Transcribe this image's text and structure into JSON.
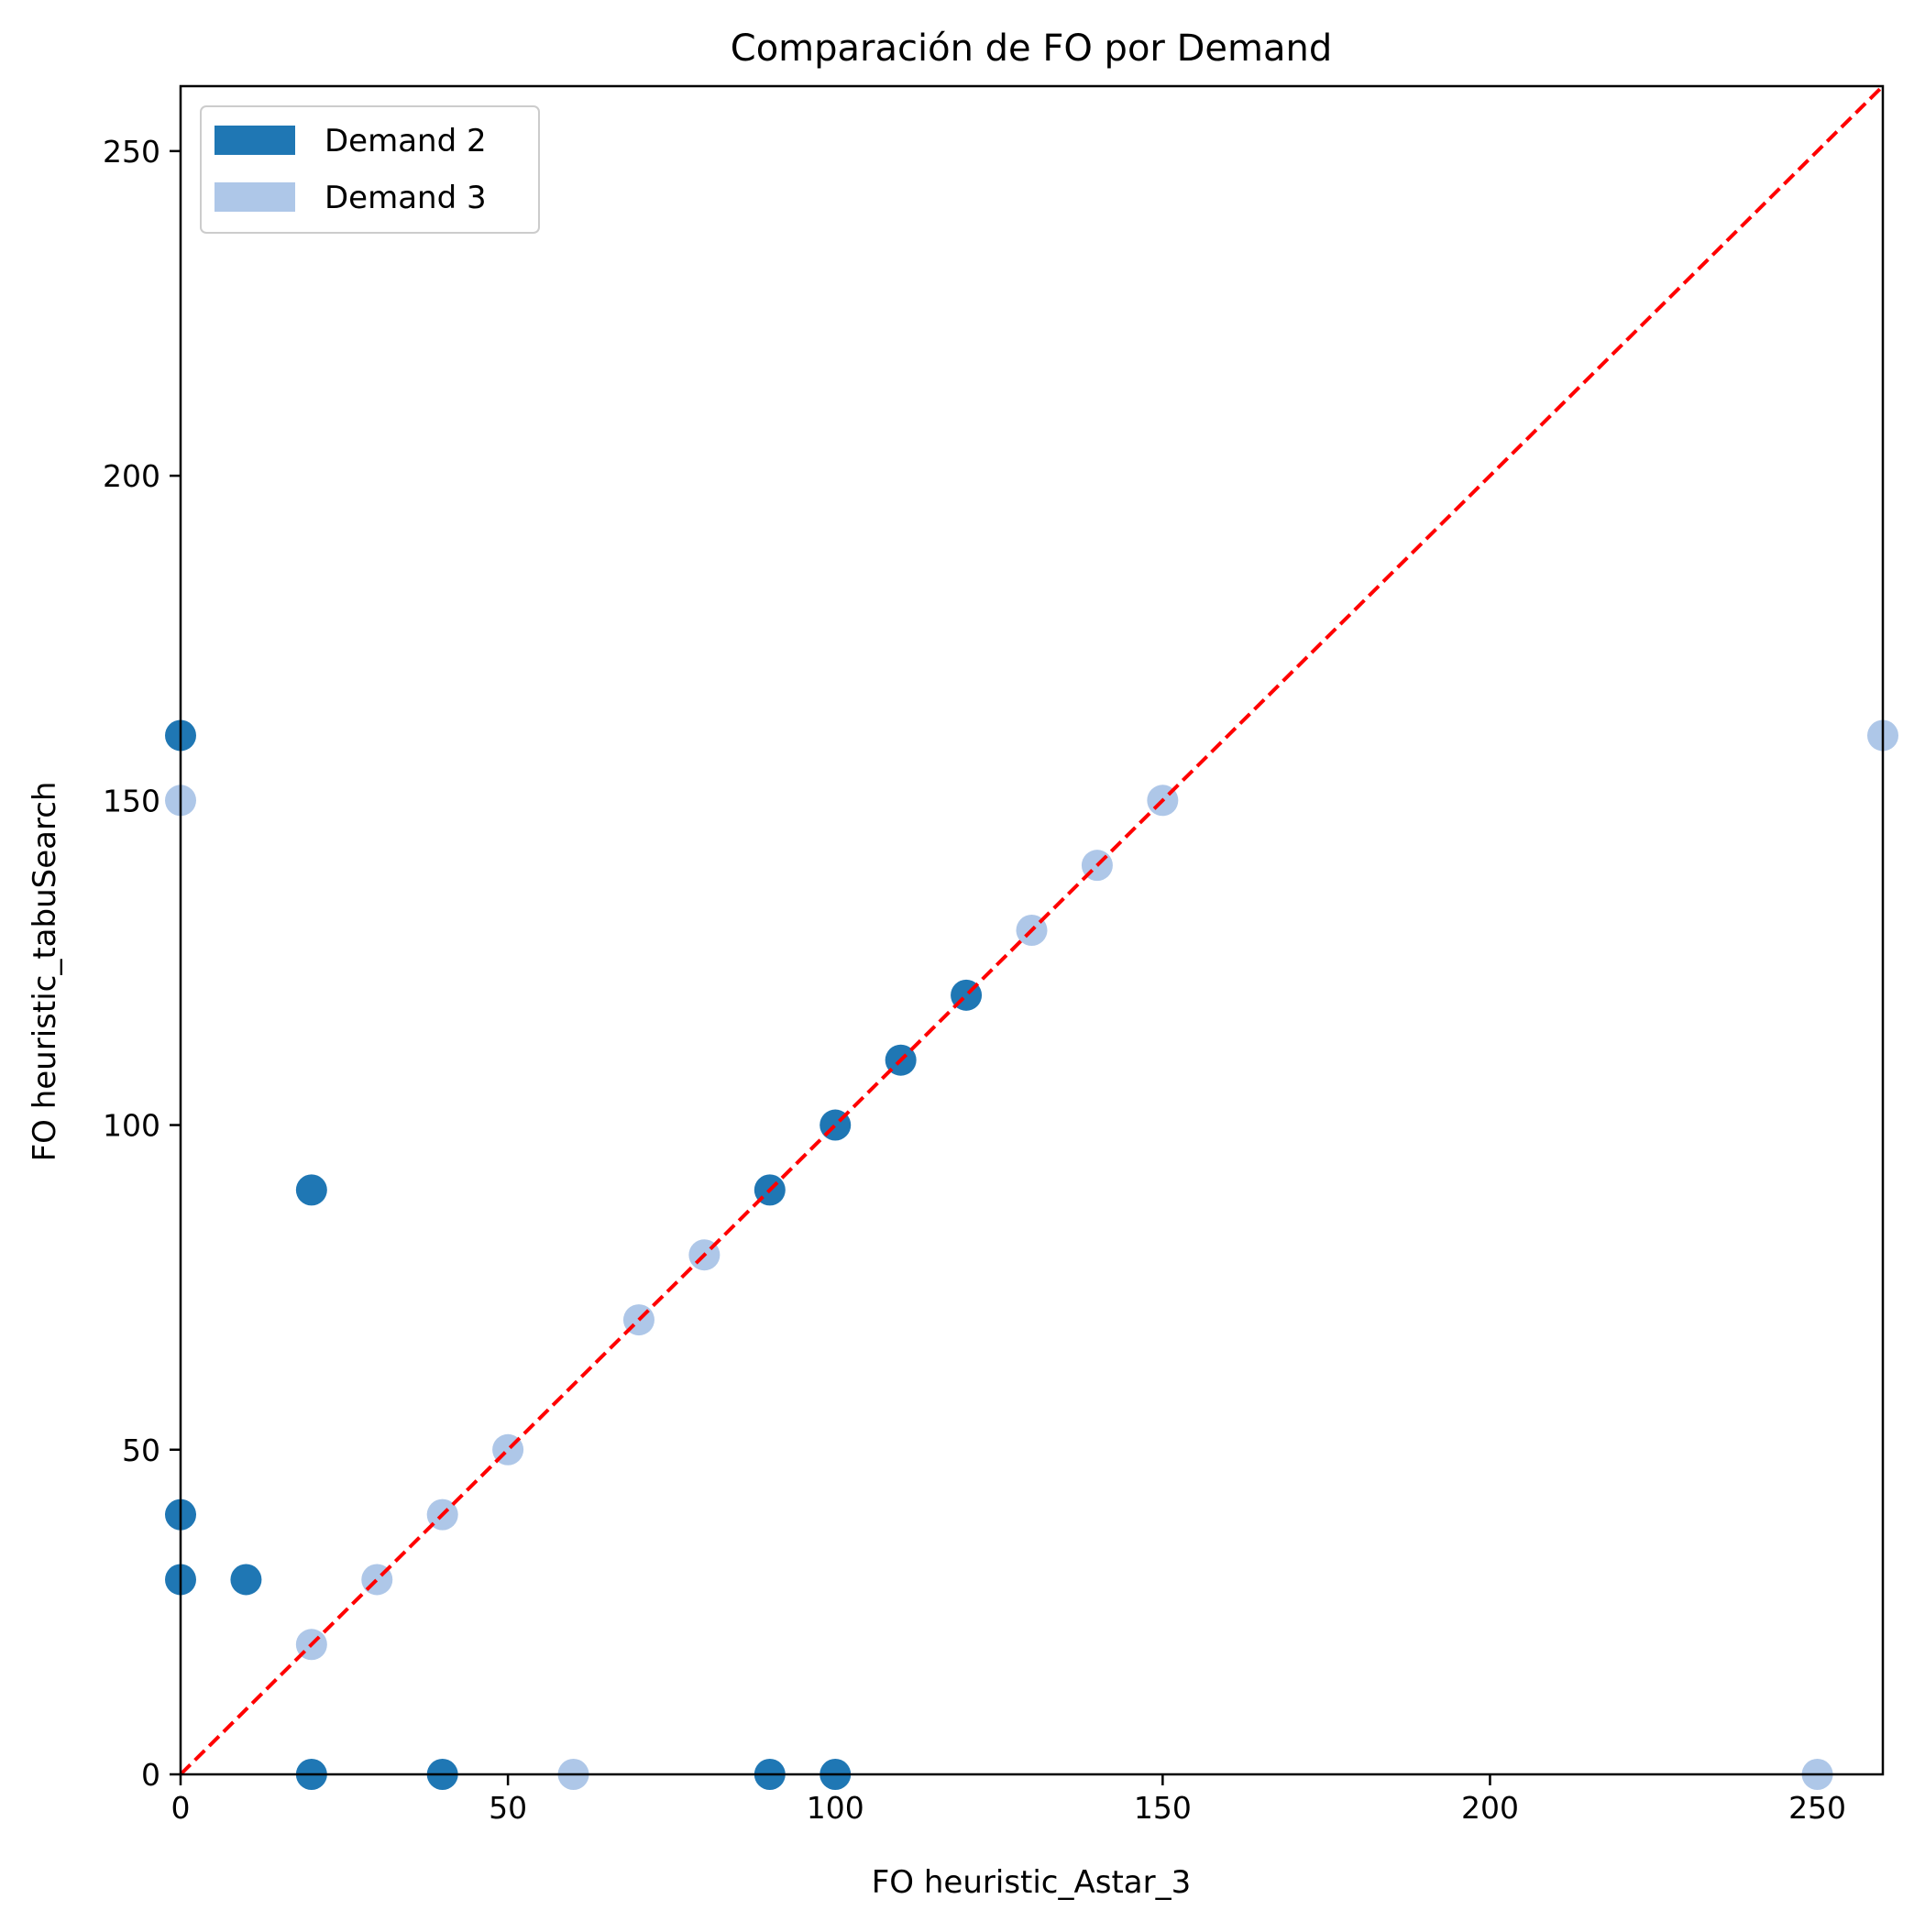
{
  "chart_data": {
    "type": "scatter",
    "title": "Comparación de FO por Demand",
    "xlabel": "FO heuristic_Astar_3",
    "ylabel": "FO heuristic_tabuSearch",
    "xlim": [
      0,
      260
    ],
    "ylim": [
      0,
      260
    ],
    "xticks": [
      0,
      50,
      100,
      150,
      200,
      250
    ],
    "yticks": [
      0,
      50,
      100,
      150,
      200,
      250
    ],
    "grid": false,
    "legend_position": "top-left",
    "reference_line": {
      "kind": "y=x",
      "style": "dashed",
      "color": "#ff0000"
    },
    "series": [
      {
        "name": "Demand 2",
        "color": "#1f77b4",
        "points": [
          [
            0,
            160
          ],
          [
            0,
            40
          ],
          [
            0,
            30
          ],
          [
            10,
            30
          ],
          [
            20,
            90
          ],
          [
            20,
            0
          ],
          [
            40,
            0
          ],
          [
            90,
            90
          ],
          [
            90,
            0
          ],
          [
            100,
            100
          ],
          [
            100,
            0
          ],
          [
            110,
            110
          ],
          [
            120,
            120
          ]
        ]
      },
      {
        "name": "Demand 3",
        "color": "#aec7e8",
        "points": [
          [
            0,
            150
          ],
          [
            20,
            20
          ],
          [
            30,
            30
          ],
          [
            40,
            40
          ],
          [
            50,
            50
          ],
          [
            60,
            0
          ],
          [
            70,
            70
          ],
          [
            80,
            80
          ],
          [
            130,
            130
          ],
          [
            140,
            140
          ],
          [
            150,
            150
          ],
          [
            250,
            0
          ],
          [
            260,
            160
          ]
        ]
      }
    ]
  }
}
